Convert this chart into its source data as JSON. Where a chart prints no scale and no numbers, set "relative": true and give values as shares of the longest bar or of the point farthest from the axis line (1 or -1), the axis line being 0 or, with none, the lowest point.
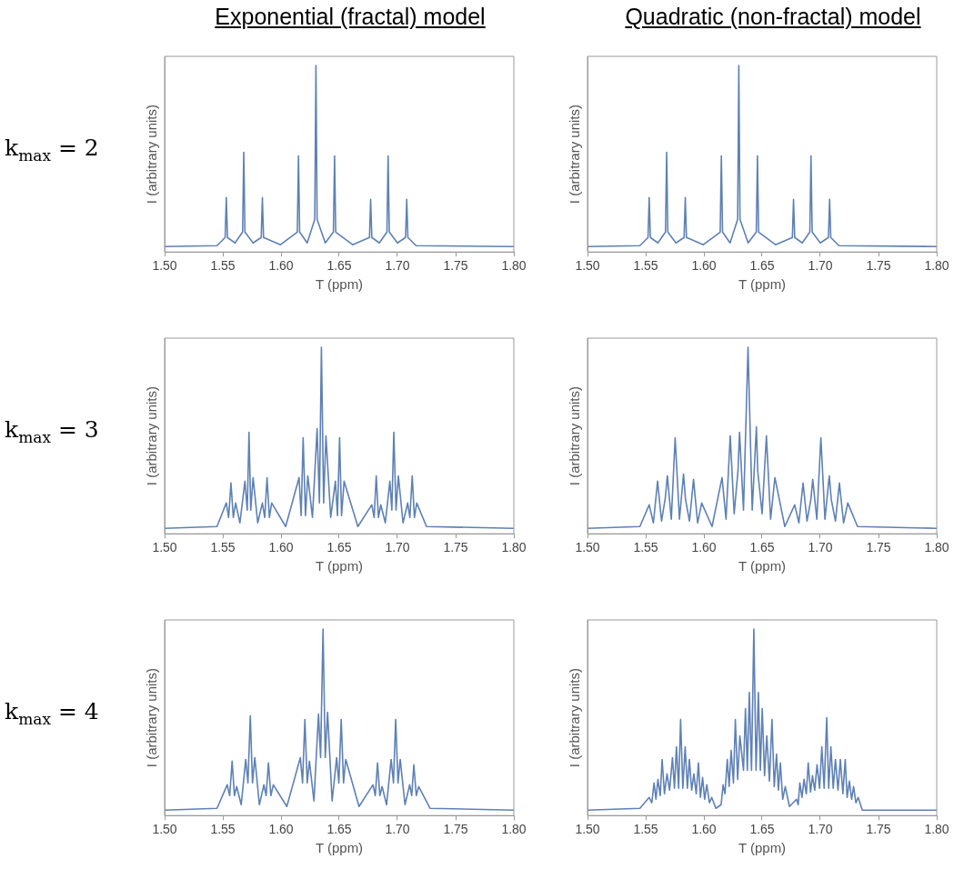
{
  "chart_data": [
    {
      "type": "line",
      "title": "Exponential (fractal) model",
      "xlabel": "T (ppm)",
      "ylabel": "I (arbitrary units)",
      "annotations": [
        "k$_{max}$ = 2"
      ],
      "relative": true,
      "tick_labels": "x",
      "color": "#5e81b5",
      "xlim": [
        1.5,
        1.8
      ],
      "xticks": [
        {
          "value": 1.5,
          "label": "1.50"
        },
        {
          "value": 1.55,
          "label": "1.55"
        },
        {
          "value": 1.6,
          "label": "1.60"
        },
        {
          "value": 1.65,
          "label": "1.65"
        },
        {
          "value": 1.7,
          "label": "1.70"
        },
        {
          "value": 1.75,
          "label": "1.75"
        },
        {
          "value": 1.8,
          "label": "1.80"
        }
      ],
      "x": [
        1.5,
        1.545,
        1.552,
        1.553,
        1.554,
        1.5605,
        1.567,
        1.568,
        1.569,
        1.576,
        1.583,
        1.584,
        1.585,
        1.5995,
        1.614,
        1.615,
        1.616,
        1.6225,
        1.629,
        1.63,
        1.631,
        1.638,
        1.645,
        1.646,
        1.647,
        1.6615,
        1.676,
        1.677,
        1.678,
        1.6845,
        1.691,
        1.692,
        1.693,
        1.7,
        1.707,
        1.708,
        1.709,
        1.716,
        1.8
      ],
      "values": [
        0,
        0.005,
        0.05,
        0.27,
        0.05,
        0.02,
        0.08,
        0.52,
        0.08,
        0.02,
        0.05,
        0.27,
        0.05,
        0.01,
        0.08,
        0.5,
        0.08,
        0.02,
        0.15,
        1,
        0.15,
        0.02,
        0.08,
        0.5,
        0.08,
        0.01,
        0.05,
        0.26,
        0.05,
        0.02,
        0.08,
        0.5,
        0.08,
        0.02,
        0.05,
        0.26,
        0.05,
        0.005,
        0
      ]
    },
    {
      "type": "line",
      "title": "Quadratic (non-fractal) model",
      "xlabel": "T (ppm)",
      "ylabel": "I (arbitrary units)",
      "relative": true,
      "tick_labels": "x",
      "color": "#5e81b5",
      "xlim": [
        1.5,
        1.8
      ],
      "xticks": [
        {
          "value": 1.5,
          "label": "1.50"
        },
        {
          "value": 1.55,
          "label": "1.55"
        },
        {
          "value": 1.6,
          "label": "1.60"
        },
        {
          "value": 1.65,
          "label": "1.65"
        },
        {
          "value": 1.7,
          "label": "1.70"
        },
        {
          "value": 1.75,
          "label": "1.75"
        },
        {
          "value": 1.8,
          "label": "1.80"
        }
      ],
      "x": [
        1.5,
        1.545,
        1.552,
        1.553,
        1.554,
        1.5605,
        1.567,
        1.568,
        1.569,
        1.576,
        1.583,
        1.584,
        1.585,
        1.5995,
        1.614,
        1.615,
        1.616,
        1.6225,
        1.629,
        1.63,
        1.631,
        1.638,
        1.645,
        1.646,
        1.647,
        1.6615,
        1.676,
        1.677,
        1.678,
        1.6845,
        1.691,
        1.692,
        1.693,
        1.7,
        1.707,
        1.708,
        1.709,
        1.716,
        1.8
      ],
      "values": [
        0,
        0.005,
        0.05,
        0.27,
        0.05,
        0.02,
        0.08,
        0.52,
        0.08,
        0.02,
        0.05,
        0.27,
        0.05,
        0.01,
        0.08,
        0.5,
        0.08,
        0.02,
        0.15,
        1,
        0.15,
        0.02,
        0.08,
        0.5,
        0.08,
        0.01,
        0.05,
        0.26,
        0.05,
        0.02,
        0.08,
        0.5,
        0.08,
        0.02,
        0.05,
        0.26,
        0.05,
        0.005,
        0
      ]
    },
    {
      "type": "line",
      "xlabel": "T (ppm)",
      "ylabel": "I (arbitrary units)",
      "annotations": [
        "k$_{max}$ = 3"
      ],
      "relative": true,
      "tick_labels": "x",
      "color": "#5e81b5",
      "xlim": [
        1.5,
        1.8
      ],
      "xticks": [
        {
          "value": 1.5,
          "label": "1.50"
        },
        {
          "value": 1.55,
          "label": "1.55"
        },
        {
          "value": 1.6,
          "label": "1.60"
        },
        {
          "value": 1.65,
          "label": "1.65"
        },
        {
          "value": 1.7,
          "label": "1.70"
        },
        {
          "value": 1.75,
          "label": "1.75"
        },
        {
          "value": 1.8,
          "label": "1.80"
        }
      ],
      "x": [
        1.5,
        1.545,
        1.553,
        1.555,
        1.557,
        1.559,
        1.561,
        1.5647,
        1.569,
        1.571,
        1.5725,
        1.574,
        1.576,
        1.58,
        1.584,
        1.586,
        1.588,
        1.59,
        1.592,
        1.604,
        1.6155,
        1.6173,
        1.619,
        1.621,
        1.623,
        1.627,
        1.631,
        1.633,
        1.6347,
        1.6366,
        1.6386,
        1.6427,
        1.6467,
        1.6485,
        1.6503,
        1.652,
        1.6542,
        1.666,
        1.678,
        1.68,
        1.6818,
        1.6837,
        1.6857,
        1.6896,
        1.6935,
        1.6952,
        1.6969,
        1.6988,
        1.7008,
        1.7048,
        1.7088,
        1.7107,
        1.7127,
        1.7146,
        1.7166,
        1.725,
        1.8
      ],
      "values": [
        0,
        0.01,
        0.14,
        0.06,
        0.25,
        0.06,
        0.14,
        0.03,
        0.26,
        0.1,
        0.53,
        0.1,
        0.28,
        0.03,
        0.14,
        0.06,
        0.28,
        0.06,
        0.14,
        0.01,
        0.28,
        0.07,
        0.5,
        0.07,
        0.29,
        0.06,
        0.55,
        0.14,
        1,
        0.14,
        0.51,
        0.06,
        0.26,
        0.07,
        0.5,
        0.07,
        0.26,
        0.01,
        0.13,
        0.06,
        0.29,
        0.06,
        0.13,
        0.03,
        0.26,
        0.1,
        0.53,
        0.1,
        0.29,
        0.03,
        0.14,
        0.06,
        0.29,
        0.06,
        0.14,
        0.01,
        0
      ]
    },
    {
      "type": "line",
      "xlabel": "T (ppm)",
      "ylabel": "I (arbitrary units)",
      "relative": true,
      "tick_labels": "x",
      "color": "#5e81b5",
      "xlim": [
        1.5,
        1.8
      ],
      "xticks": [
        {
          "value": 1.5,
          "label": "1.50"
        },
        {
          "value": 1.55,
          "label": "1.55"
        },
        {
          "value": 1.6,
          "label": "1.60"
        },
        {
          "value": 1.65,
          "label": "1.65"
        },
        {
          "value": 1.7,
          "label": "1.70"
        },
        {
          "value": 1.75,
          "label": "1.75"
        },
        {
          "value": 1.8,
          "label": "1.80"
        }
      ],
      "x": [
        1.5,
        1.545,
        1.553,
        1.5566,
        1.5602,
        1.5636,
        1.5669,
        1.5686,
        1.572,
        1.5753,
        1.579,
        1.5825,
        1.5842,
        1.5876,
        1.5911,
        1.5946,
        1.5981,
        1.607,
        1.6156,
        1.619,
        1.6226,
        1.626,
        1.6293,
        1.6306,
        1.634,
        1.6379,
        1.6415,
        1.6451,
        1.6462,
        1.65,
        1.6537,
        1.6573,
        1.661,
        1.6695,
        1.678,
        1.6816,
        1.6852,
        1.6886,
        1.6919,
        1.6935,
        1.697,
        1.7005,
        1.704,
        1.7077,
        1.7094,
        1.713,
        1.7164,
        1.72,
        1.7236,
        1.732,
        1.8
      ],
      "values": [
        0,
        0.01,
        0.13,
        0.03,
        0.26,
        0.04,
        0.17,
        0.29,
        0.05,
        0.5,
        0.05,
        0.3,
        0.16,
        0.04,
        0.27,
        0.03,
        0.14,
        0.01,
        0.28,
        0.05,
        0.51,
        0.08,
        0.32,
        0.53,
        0.1,
        1,
        0.1,
        0.56,
        0.32,
        0.08,
        0.51,
        0.05,
        0.28,
        0.01,
        0.13,
        0.03,
        0.25,
        0.04,
        0.16,
        0.27,
        0.05,
        0.5,
        0.05,
        0.29,
        0.16,
        0.04,
        0.25,
        0.03,
        0.14,
        0.01,
        0
      ]
    },
    {
      "type": "line",
      "xlabel": "T (ppm)",
      "ylabel": "I (arbitrary units)",
      "annotations": [
        "k$_{max}$ = 4"
      ],
      "relative": true,
      "tick_labels": "x",
      "color": "#5e81b5",
      "xlim": [
        1.5,
        1.8
      ],
      "xticks": [
        {
          "value": 1.5,
          "label": "1.50"
        },
        {
          "value": 1.55,
          "label": "1.55"
        },
        {
          "value": 1.6,
          "label": "1.60"
        },
        {
          "value": 1.65,
          "label": "1.65"
        },
        {
          "value": 1.7,
          "label": "1.70"
        },
        {
          "value": 1.75,
          "label": "1.75"
        },
        {
          "value": 1.8,
          "label": "1.80"
        }
      ],
      "x": [
        1.5,
        1.545,
        1.5538,
        1.5559,
        1.558,
        1.56,
        1.5619,
        1.5658,
        1.5697,
        1.5716,
        1.5736,
        1.5755,
        1.5775,
        1.5814,
        1.5853,
        1.5872,
        1.5892,
        1.5913,
        1.5934,
        1.605,
        1.6166,
        1.6185,
        1.6205,
        1.6225,
        1.6244,
        1.6283,
        1.6322,
        1.634,
        1.6361,
        1.638,
        1.64,
        1.6439,
        1.6478,
        1.6497,
        1.6517,
        1.6537,
        1.6556,
        1.667,
        1.679,
        1.681,
        1.6829,
        1.6849,
        1.6868,
        1.6907,
        1.6946,
        1.6966,
        1.6985,
        1.7005,
        1.7024,
        1.7065,
        1.7105,
        1.7123,
        1.7141,
        1.7162,
        1.7183,
        1.728,
        1.8
      ],
      "values": [
        0,
        0.01,
        0.14,
        0.08,
        0.27,
        0.08,
        0.13,
        0.03,
        0.28,
        0.15,
        0.52,
        0.15,
        0.29,
        0.03,
        0.14,
        0.08,
        0.26,
        0.08,
        0.14,
        0.02,
        0.29,
        0.15,
        0.5,
        0.15,
        0.27,
        0.05,
        0.53,
        0.29,
        1,
        0.29,
        0.54,
        0.05,
        0.29,
        0.15,
        0.5,
        0.15,
        0.28,
        0.02,
        0.14,
        0.08,
        0.26,
        0.08,
        0.13,
        0.03,
        0.28,
        0.15,
        0.5,
        0.15,
        0.28,
        0.03,
        0.14,
        0.08,
        0.25,
        0.08,
        0.13,
        0.01,
        0
      ]
    },
    {
      "type": "line",
      "xlabel": "T (ppm)",
      "ylabel": "I (arbitrary units)",
      "relative": true,
      "tick_labels": "x",
      "color": "#5e81b5",
      "xlim": [
        1.5,
        1.8
      ],
      "xticks": [
        {
          "value": 1.5,
          "label": "1.50"
        },
        {
          "value": 1.55,
          "label": "1.55"
        },
        {
          "value": 1.6,
          "label": "1.60"
        },
        {
          "value": 1.65,
          "label": "1.65"
        },
        {
          "value": 1.7,
          "label": "1.70"
        },
        {
          "value": 1.75,
          "label": "1.75"
        },
        {
          "value": 1.8,
          "label": "1.80"
        }
      ],
      "x": [
        1.5,
        1.545,
        1.553,
        1.5552,
        1.5572,
        1.5588,
        1.5605,
        1.5625,
        1.5641,
        1.5661,
        1.5683,
        1.5705,
        1.573,
        1.5747,
        1.5764,
        1.5783,
        1.58,
        1.5819,
        1.5839,
        1.5858,
        1.5875,
        1.5895,
        1.5914,
        1.5934,
        1.5953,
        1.597,
        1.5989,
        1.6006,
        1.6025,
        1.6048,
        1.6067,
        1.6103,
        1.6148,
        1.6165,
        1.6181,
        1.6201,
        1.6217,
        1.6234,
        1.6254,
        1.627,
        1.629,
        1.6309,
        1.634,
        1.6357,
        1.6373,
        1.639,
        1.6409,
        1.6429,
        1.6448,
        1.6468,
        1.6485,
        1.6501,
        1.6521,
        1.654,
        1.6563,
        1.6585,
        1.6604,
        1.6624,
        1.664,
        1.6657,
        1.6677,
        1.6699,
        1.6735,
        1.6796,
        1.681,
        1.6824,
        1.6843,
        1.686,
        1.688,
        1.6896,
        1.6916,
        1.6933,
        1.6952,
        1.6972,
        1.6994,
        1.7013,
        1.7033,
        1.7055,
        1.7072,
        1.7091,
        1.7111,
        1.713,
        1.7152,
        1.7172,
        1.7194,
        1.7214,
        1.723,
        1.725,
        1.7269,
        1.7286,
        1.7306,
        1.7325,
        1.7361,
        1.8
      ],
      "values": [
        0,
        0.01,
        0.07,
        0.04,
        0.15,
        0.06,
        0.17,
        0.08,
        0.28,
        0.09,
        0.2,
        0.11,
        0.29,
        0.12,
        0.35,
        0.12,
        0.5,
        0.12,
        0.35,
        0.12,
        0.28,
        0.11,
        0.2,
        0.09,
        0.26,
        0.07,
        0.18,
        0.06,
        0.14,
        0.04,
        0.07,
        0.01,
        0.03,
        0.14,
        0.09,
        0.28,
        0.13,
        0.33,
        0.15,
        0.5,
        0.17,
        0.41,
        0.22,
        0.56,
        0.22,
        0.65,
        0.22,
        1,
        0.22,
        0.65,
        0.22,
        0.56,
        0.19,
        0.41,
        0.16,
        0.5,
        0.13,
        0.31,
        0.11,
        0.26,
        0.06,
        0.13,
        0.02,
        0.06,
        0.03,
        0.15,
        0.07,
        0.17,
        0.09,
        0.26,
        0.1,
        0.19,
        0.11,
        0.25,
        0.12,
        0.35,
        0.12,
        0.51,
        0.12,
        0.35,
        0.12,
        0.28,
        0.11,
        0.28,
        0.09,
        0.28,
        0.07,
        0.16,
        0.06,
        0.13,
        0.04,
        0.07,
        0,
        0
      ]
    }
  ]
}
